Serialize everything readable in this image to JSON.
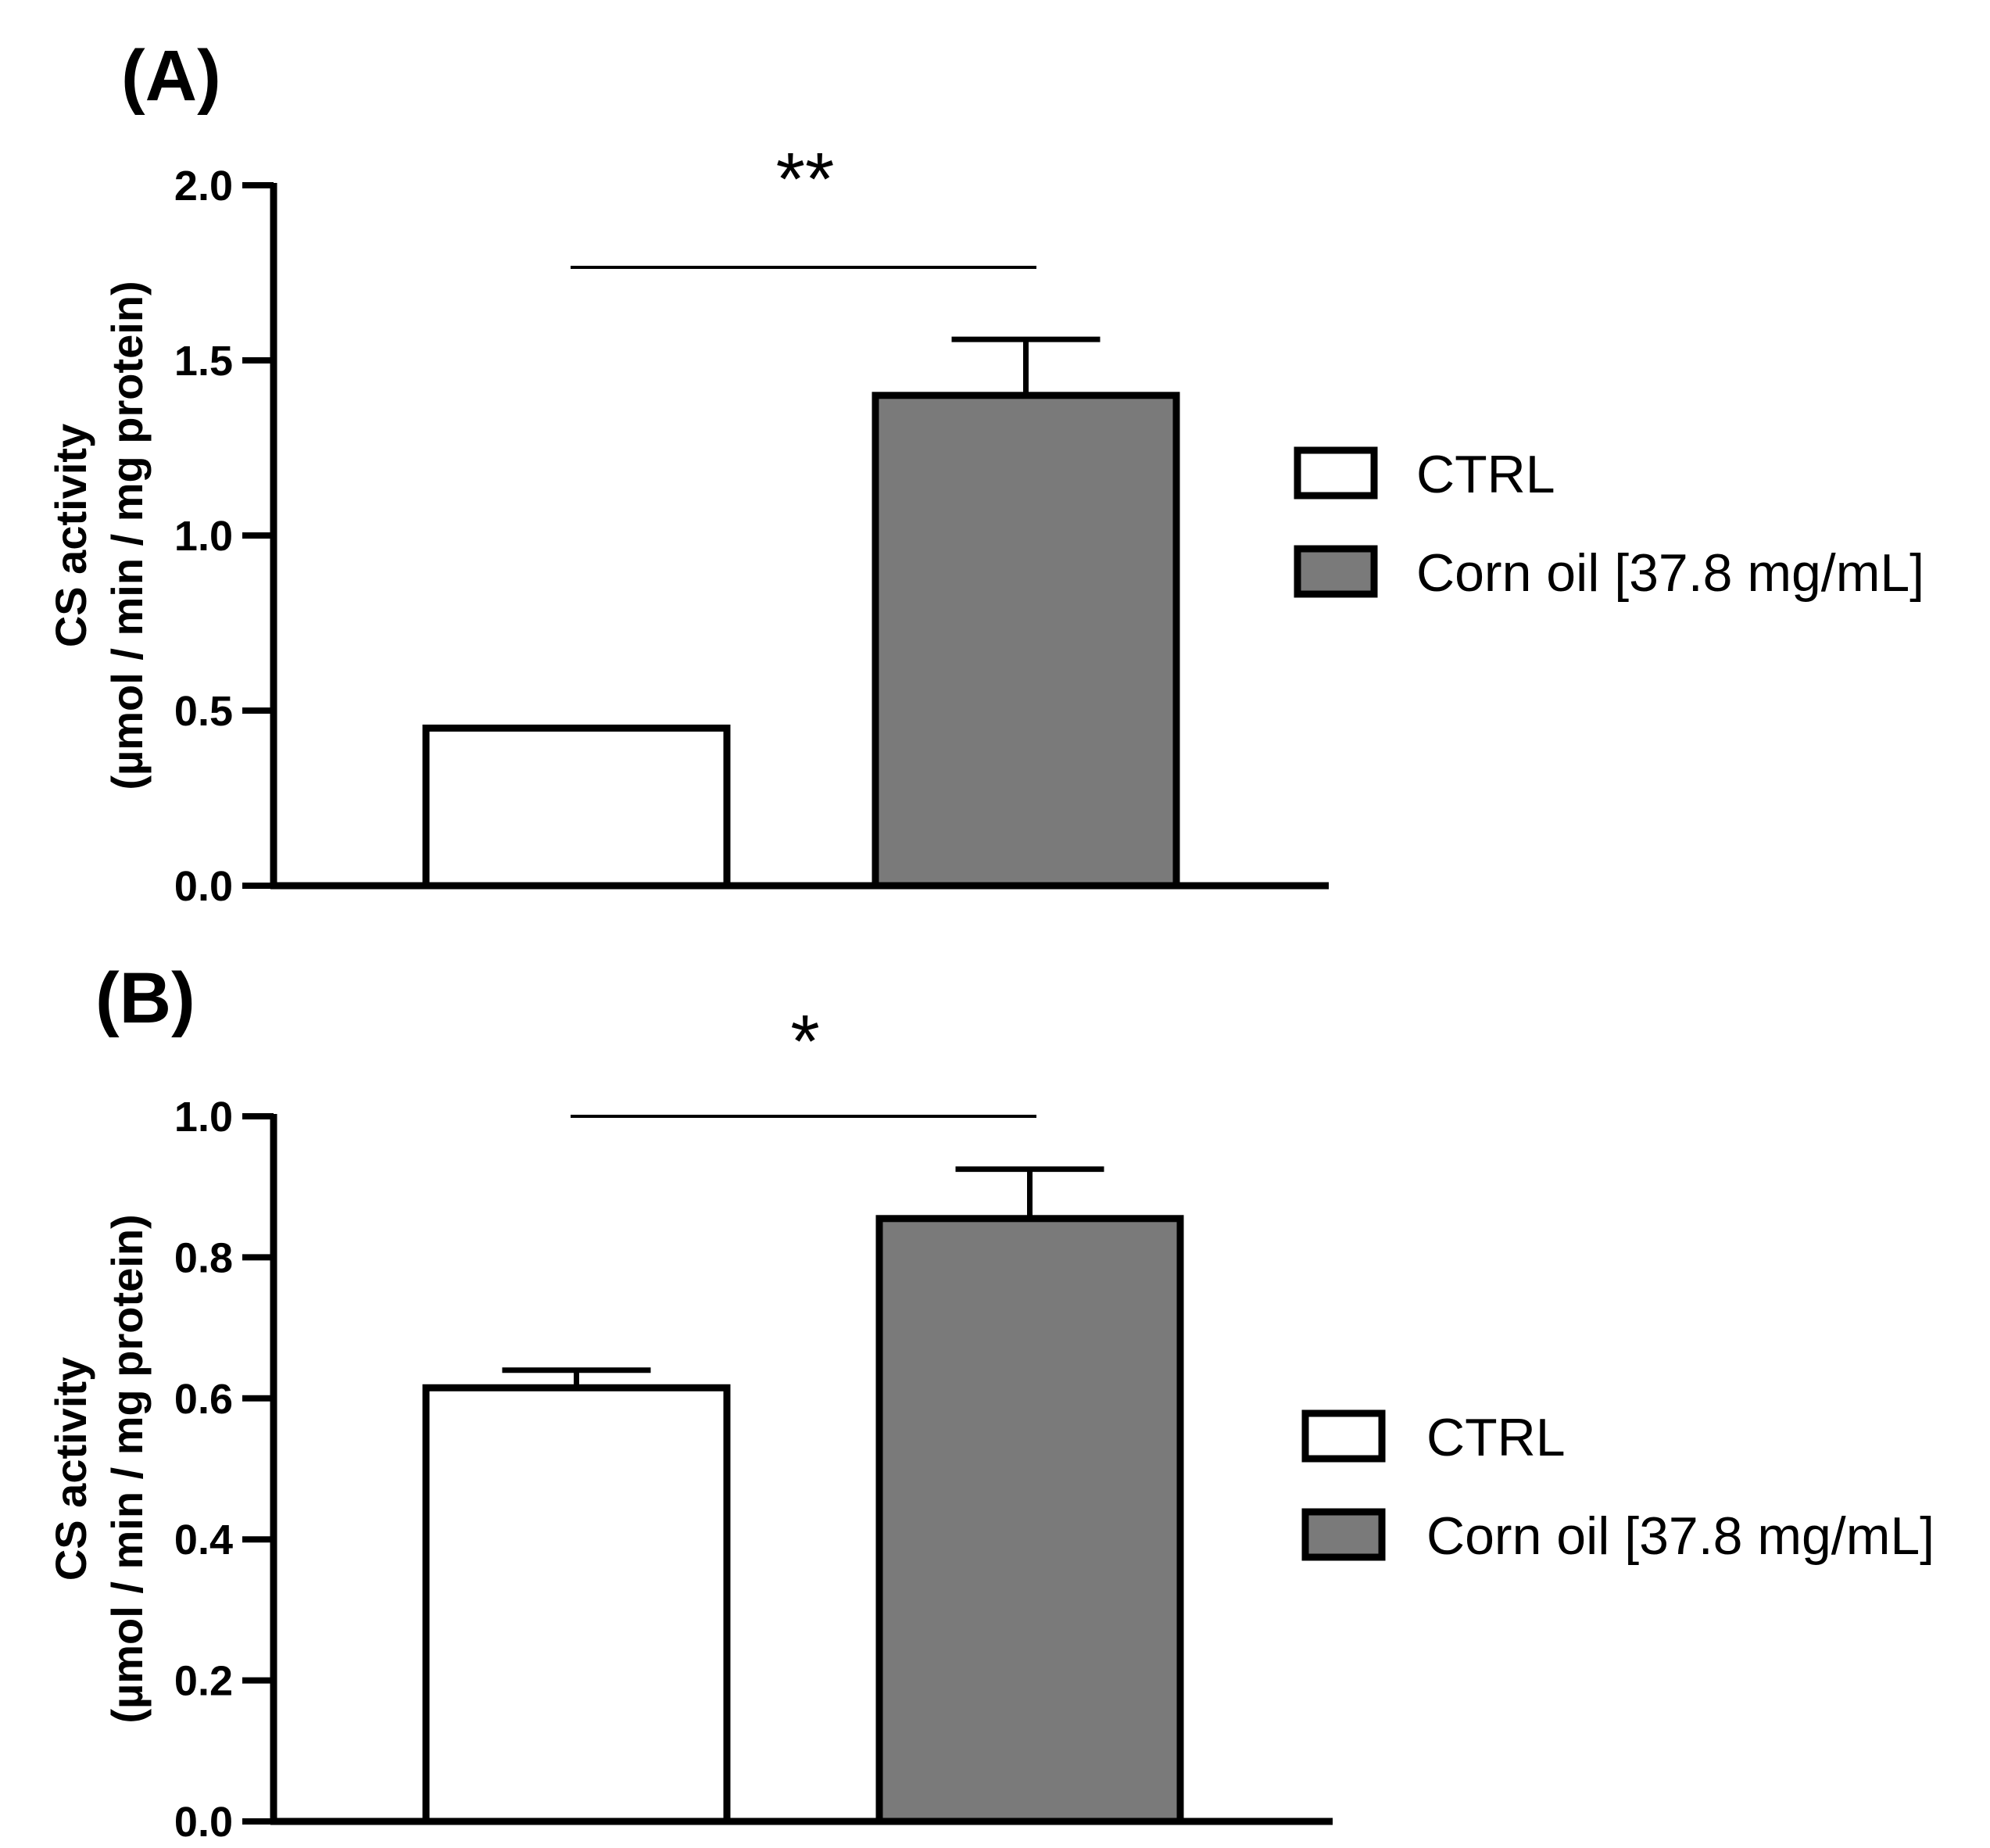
{
  "chart_data": [
    {
      "type": "bar",
      "panel": "(A)",
      "categories": [
        "CTRL",
        "Corn oil [37.8 mg/mL]"
      ],
      "values": [
        0.45,
        1.4
      ],
      "errors": [
        0,
        0.16
      ],
      "colors": [
        "#ffffff",
        "#7a7a7a"
      ],
      "ylim": [
        0,
        2.0
      ],
      "yticks": [
        0.0,
        0.5,
        1.0,
        1.5,
        2.0
      ],
      "ytick_labels": [
        "0.0",
        "0.5",
        "1.0",
        "1.5",
        "2.0"
      ],
      "ylabel_line1": "CS activity",
      "ylabel_line2": "(µmol / min / mg protein)",
      "significance": "**",
      "legend": [
        "CTRL",
        "Corn oil [37.8 mg/mL]"
      ]
    },
    {
      "type": "bar",
      "panel": "(B)",
      "categories": [
        "CTRL",
        "Corn oil [37.8 mg/mL]"
      ],
      "values": [
        0.615,
        0.855
      ],
      "errors": [
        0.025,
        0.07
      ],
      "colors": [
        "#ffffff",
        "#7a7a7a"
      ],
      "ylim": [
        0,
        1.0
      ],
      "yticks": [
        0.0,
        0.2,
        0.4,
        0.6,
        0.8,
        1.0
      ],
      "ytick_labels": [
        "0.0",
        "0.2",
        "0.4",
        "0.6",
        "0.8",
        "1.0"
      ],
      "ylabel_line1": "CS activity",
      "ylabel_line2": "(µmol / min / mg protein)",
      "significance": "*",
      "legend": [
        "CTRL",
        "Corn oil [37.8 mg/mL]"
      ]
    }
  ]
}
